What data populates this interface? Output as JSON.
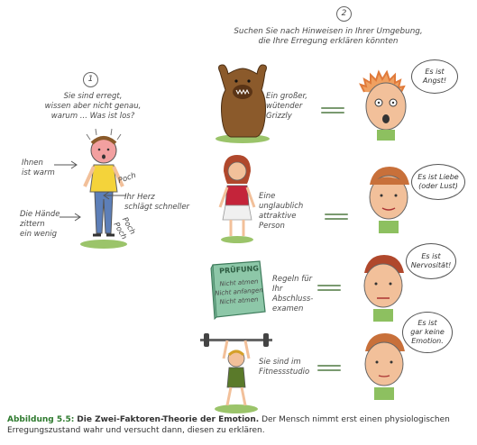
{
  "step1": {
    "number": "1",
    "question": "Sie sind erregt,\nwissen aber nicht genau,\nwarum ... Was ist los?",
    "label_warm": "Ihnen\nist warm",
    "label_poch1": "Poch",
    "label_heart": "Ihr Herz\nschlägt schneller",
    "label_poch2": "Poch\nPoch",
    "label_hands": "Die Hände\nzittern\nein wenig"
  },
  "step2": {
    "number": "2",
    "instruction": "Suchen Sie nach Hinweisen in Ihrer Umgebung,\ndie Ihre Erregung erklären könnten",
    "rows": [
      {
        "cue": "Ein großer,\nwütender\nGrizzly",
        "explanation": "Es ist\nAngst!"
      },
      {
        "cue": "Eine\nunglaublich\nattraktive\nPerson",
        "explanation": "Es ist Liebe\n(oder Lust)"
      },
      {
        "cue": "Regeln für\nIhr\nAbschluss-\nexamen",
        "explanation": "Es ist\nNervosität!"
      },
      {
        "cue": "Sie sind im\nFitnessstudio",
        "explanation": "Es ist\ngar keine\nEmotion."
      }
    ],
    "book": {
      "title": "PRÜFUNG",
      "lines": [
        "Nicht atmen",
        "Nicht anfangen",
        "Nicht atmen"
      ]
    }
  },
  "caption": {
    "label": "Abbildung 5.5:",
    "title": "Die Zwei-Faktoren-Theorie der Emotion.",
    "text": "Der Mensch nimmt erst einen physiologischen Erregungszustand wahr und versucht dann, diesen zu erklären."
  },
  "colors": {
    "caption_label": "#2e7a2e",
    "grass": "#9bc46a",
    "skin": "#f2c09a",
    "hair_orange": "#e07a3a"
  }
}
